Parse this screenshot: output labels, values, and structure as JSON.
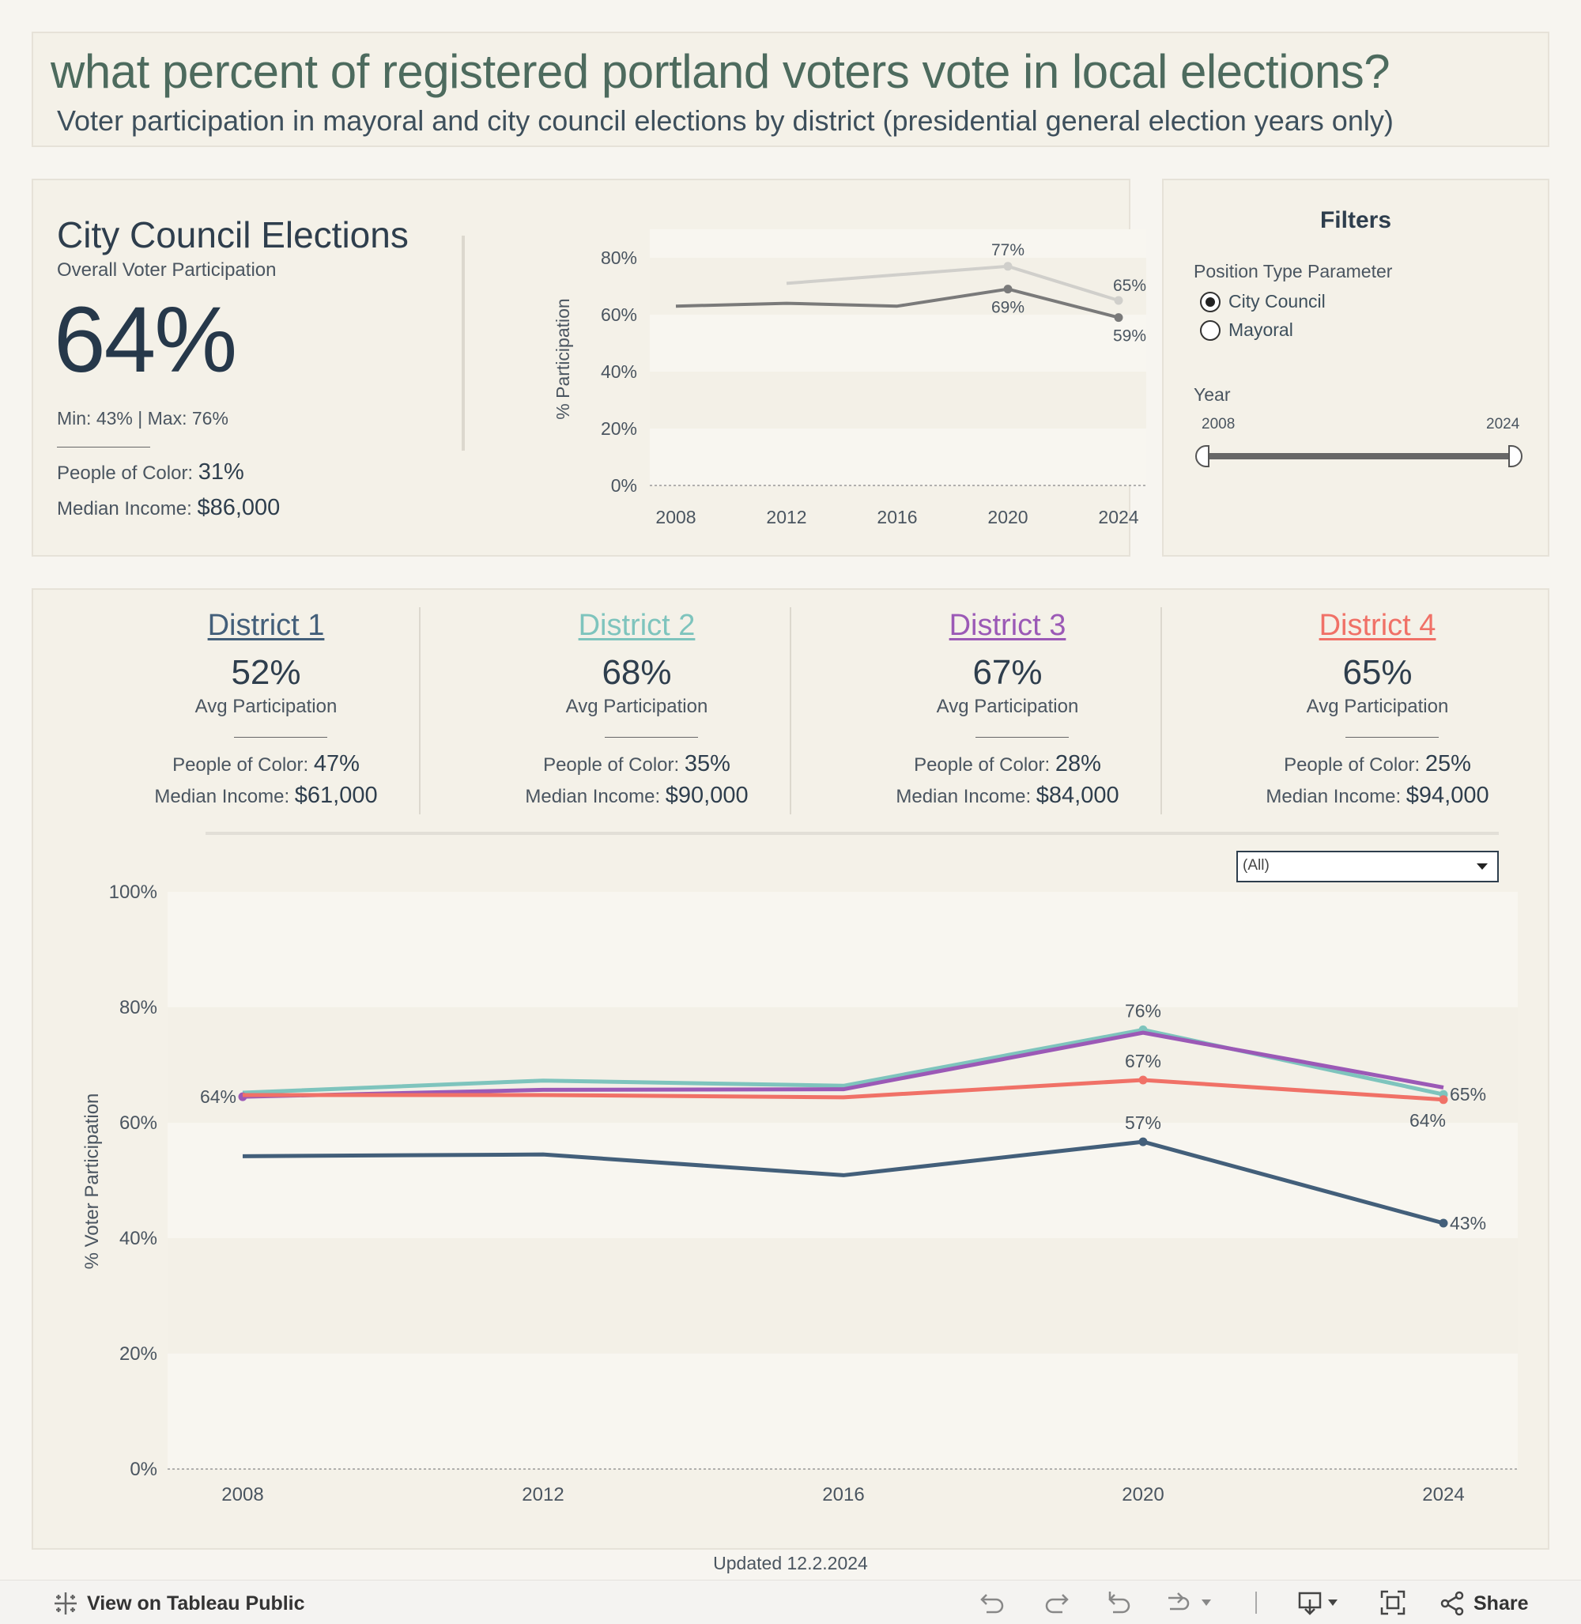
{
  "header": {
    "title": "what percent of registered portland voters vote in local elections?",
    "subtitle": "Voter participation in mayoral and city council elections by district (presidential general election years only)"
  },
  "overview": {
    "title": "City Council Elections",
    "subtitle": "Overall Voter Participation",
    "big_value": "64%",
    "minmax": "Min: 43% | Max: 76%",
    "poc_label": "People of Color:",
    "poc_value": "31%",
    "income_label": "Median Income:",
    "income_value": "$86,000"
  },
  "filters": {
    "title": "Filters",
    "position_label": "Position Type Parameter",
    "options": [
      "City Council",
      "Mayoral"
    ],
    "selected": "City Council",
    "year_label": "Year",
    "year_min": "2008",
    "year_max": "2024"
  },
  "districts": [
    {
      "name": "District 1",
      "avg": "52%",
      "avg_label": "Avg Participation",
      "poc_label": "People of Color:",
      "poc": "47%",
      "income_label": "Median Income:",
      "income": "$61,000",
      "color": "#435f7a"
    },
    {
      "name": "District 2",
      "avg": "68%",
      "avg_label": "Avg Participation",
      "poc_label": "People of Color:",
      "poc": "35%",
      "income_label": "Median Income:",
      "income": "$90,000",
      "color": "#7ec4bd"
    },
    {
      "name": "District 3",
      "avg": "67%",
      "avg_label": "Avg Participation",
      "poc_label": "People of Color:",
      "poc": "28%",
      "income_label": "Median Income:",
      "income": "$84,000",
      "color": "#9b59b6"
    },
    {
      "name": "District 4",
      "avg": "65%",
      "avg_label": "Avg Participation",
      "poc_label": "People of Color:",
      "poc": "25%",
      "income_label": "Median Income:",
      "income": "$94,000",
      "color": "#f07167"
    }
  ],
  "district_filter": {
    "value": "(All)"
  },
  "footer": {
    "updated": "Updated 12.2.2024",
    "view_label": "View on Tableau Public",
    "share_label": "Share"
  },
  "chart_data": [
    {
      "type": "line",
      "title": "",
      "xlabel": "",
      "ylabel": "% Participation",
      "x": [
        2008,
        2012,
        2016,
        2020,
        2024
      ],
      "x_ticks": [
        "2008",
        "2012",
        "2016",
        "2020",
        "2024"
      ],
      "ylim": [
        0,
        90
      ],
      "y_ticks": [
        "0%",
        "20%",
        "40%",
        "60%",
        "80%"
      ],
      "y_tick_values": [
        0,
        20,
        40,
        60,
        80
      ],
      "series": [
        {
          "name": "Mayoral",
          "color": "#d0cfcb",
          "values": [
            null,
            71,
            null,
            77,
            65
          ],
          "labels": {
            "3": "77%",
            "4": "65%"
          }
        },
        {
          "name": "City Council",
          "color": "#7a7a7a",
          "values": [
            63,
            64,
            63,
            69,
            59
          ],
          "labels": {
            "3": "69%",
            "4": "59%"
          }
        }
      ]
    },
    {
      "type": "line",
      "title": "",
      "xlabel": "",
      "ylabel": "% Voter Participation",
      "x": [
        2008,
        2012,
        2016,
        2020,
        2024
      ],
      "x_ticks": [
        "2008",
        "2012",
        "2016",
        "2020",
        "2024"
      ],
      "ylim": [
        0,
        100
      ],
      "y_ticks": [
        "0%",
        "20%",
        "40%",
        "60%",
        "80%",
        "100%"
      ],
      "y_tick_values": [
        0,
        20,
        40,
        60,
        80,
        100
      ],
      "series": [
        {
          "name": "District 1",
          "color": "#435f7a",
          "values": [
            54.2,
            54.5,
            50.9,
            56.7,
            42.6
          ],
          "labels": {
            "3": "57%",
            "4": "43%"
          }
        },
        {
          "name": "District 2",
          "color": "#7ec4bd",
          "values": [
            65.2,
            67.3,
            66.4,
            76.1,
            64.9
          ],
          "labels": {
            "3": "76%",
            "4": "65%"
          }
        },
        {
          "name": "District 3",
          "color": "#9b59b6",
          "values": [
            64.5,
            65.7,
            65.8,
            75.6,
            66.1
          ],
          "labels": {
            "0": "64%"
          }
        },
        {
          "name": "District 4",
          "color": "#f07167",
          "values": [
            64.8,
            64.8,
            64.4,
            67.4,
            64.0
          ],
          "labels": {
            "3": "67%",
            "4": "64%"
          }
        }
      ]
    }
  ]
}
